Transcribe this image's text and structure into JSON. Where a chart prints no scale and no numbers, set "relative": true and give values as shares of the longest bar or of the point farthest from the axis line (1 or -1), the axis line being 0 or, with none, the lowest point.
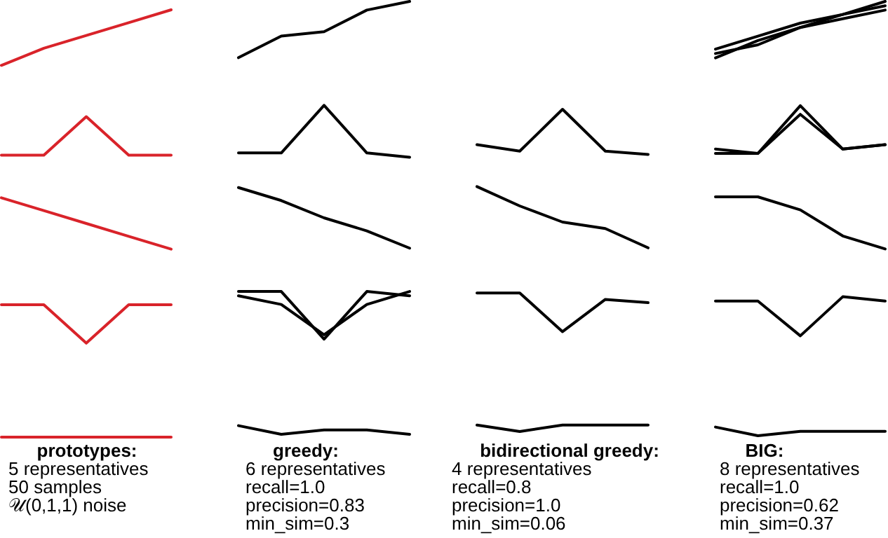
{
  "chart_data": [
    {
      "type": "line",
      "title": "prototypes:",
      "annotations": [
        "5 representatives",
        "50 samples",
        "𝒰(0,1,1) noise"
      ],
      "categories": [
        null,
        null,
        null,
        null,
        null
      ],
      "relative": true,
      "series": [
        {
          "color": "#d9232a",
          "values": [
            0.87,
            0.91,
            0.94,
            0.97,
            1
          ]
        },
        {
          "color": "#d9232a",
          "values": [
            0.66,
            0.66,
            0.75,
            0.66,
            0.66
          ]
        },
        {
          "color": "#d9232a",
          "values": [
            0.56,
            0.53,
            0.5,
            0.47,
            0.44
          ]
        },
        {
          "color": "#d9232a",
          "values": [
            0.31,
            0.31,
            0.22,
            0.31,
            0.31
          ]
        },
        {
          "color": "#d9232a",
          "values": [
            0,
            0,
            0,
            0,
            0
          ]
        }
      ]
    },
    {
      "type": "line",
      "title": "greedy:",
      "annotations": [
        "6 representatives",
        "recall=1.0",
        "precision=0.83",
        "min_sim=0.3"
      ],
      "categories": [
        null,
        null,
        null,
        null,
        null
      ],
      "relative": true,
      "series": [
        {
          "color": "#000000",
          "values": [
            0.87,
            0.92,
            0.93,
            0.98,
            1
          ]
        },
        {
          "color": "#000000",
          "values": [
            0.65,
            0.65,
            0.76,
            0.65,
            0.64
          ]
        },
        {
          "color": "#000000",
          "values": [
            0.57,
            0.54,
            0.5,
            0.47,
            0.43
          ]
        },
        {
          "color": "#000000",
          "values": [
            0.33,
            0.33,
            0.22,
            0.33,
            0.32
          ]
        },
        {
          "color": "#000000",
          "values": [
            0.32,
            0.3,
            0.23,
            0.3,
            0.33
          ]
        },
        {
          "color": "#000000",
          "values": [
            0.02,
            0,
            0.01,
            0.01,
            0
          ]
        }
      ]
    },
    {
      "type": "line",
      "title": "bidirectional greedy:",
      "annotations": [
        "4 representatives",
        "recall=0.8",
        "precision=1.0",
        "min_sim=0.06"
      ],
      "categories": [
        null,
        null,
        null,
        null,
        null
      ],
      "relative": true,
      "series": [
        {
          "color": "#000000",
          "values": [
            0.89,
            0.87,
            1,
            0.87,
            0.86
          ]
        },
        {
          "color": "#000000",
          "values": [
            0.76,
            0.7,
            0.65,
            0.63,
            0.57
          ]
        },
        {
          "color": "#000000",
          "values": [
            0.43,
            0.43,
            0.31,
            0.41,
            0.4
          ]
        },
        {
          "color": "#000000",
          "values": [
            0.02,
            0,
            0.02,
            0.02,
            0.02
          ]
        }
      ]
    },
    {
      "type": "line",
      "title": "BIG:",
      "annotations": [
        "8 representatives",
        "recall=1.0",
        "precision=0.62",
        "min_sim=0.37"
      ],
      "categories": [
        null,
        null,
        null,
        null,
        null
      ],
      "relative": true,
      "series": [
        {
          "color": "#000000",
          "values": [
            0.89,
            0.92,
            0.95,
            0.97,
            1
          ]
        },
        {
          "color": "#000000",
          "values": [
            0.88,
            0.9,
            0.94,
            0.97,
            0.99
          ]
        },
        {
          "color": "#000000",
          "values": [
            0.87,
            0.91,
            0.94,
            0.96,
            0.98
          ]
        },
        {
          "color": "#000000",
          "values": [
            0.66,
            0.65,
            0.76,
            0.66,
            0.67
          ]
        },
        {
          "color": "#000000",
          "values": [
            0.65,
            0.65,
            0.74,
            0.66,
            0.67
          ]
        },
        {
          "color": "#000000",
          "values": [
            0.55,
            0.55,
            0.52,
            0.46,
            0.43
          ]
        },
        {
          "color": "#000000",
          "values": [
            0.31,
            0.31,
            0.23,
            0.32,
            0.31
          ]
        },
        {
          "color": "#000000",
          "values": [
            0.02,
            0,
            0.01,
            0.01,
            0.01
          ]
        }
      ]
    }
  ]
}
